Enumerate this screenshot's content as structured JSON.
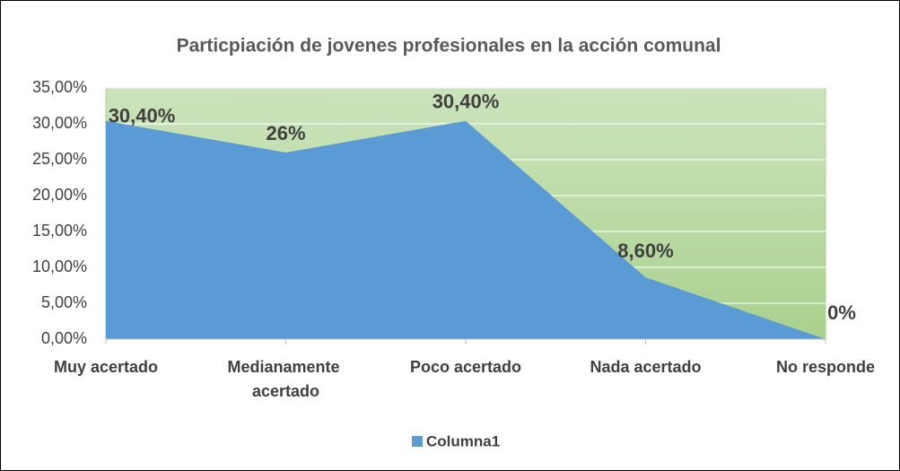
{
  "chart_data": {
    "type": "area",
    "title": "Particpiación de jovenes profesionales en la acción comunal",
    "categories": [
      "Muy acertado",
      "Medianamente acertado",
      "Poco acertado",
      "Nada acertado",
      "No responde"
    ],
    "series": [
      {
        "name": "Columna1",
        "color": "#5b9bd5",
        "values": [
          30.4,
          26,
          30.4,
          8.6,
          0
        ],
        "value_labels": [
          "30,40%",
          "26%",
          "30,40%",
          "8,60%",
          "0%"
        ]
      }
    ],
    "ylim": [
      0,
      35
    ],
    "yticks": [
      {
        "value": 0,
        "label": "0,00%"
      },
      {
        "value": 5,
        "label": "5,00%"
      },
      {
        "value": 10,
        "label": "10,00%"
      },
      {
        "value": 15,
        "label": "15,00%"
      },
      {
        "value": 20,
        "label": "20,00%"
      },
      {
        "value": 25,
        "label": "25,00%"
      },
      {
        "value": 30,
        "label": "30,00%"
      },
      {
        "value": 35,
        "label": "35,00%"
      }
    ],
    "grid": true,
    "legend": "bottom",
    "plot_background": "#b5d89c"
  }
}
